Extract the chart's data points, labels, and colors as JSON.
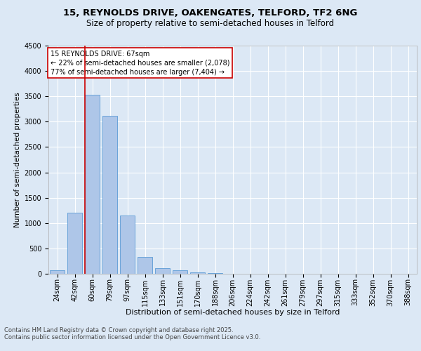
{
  "title1": "15, REYNOLDS DRIVE, OAKENGATES, TELFORD, TF2 6NG",
  "title2": "Size of property relative to semi-detached houses in Telford",
  "xlabel": "Distribution of semi-detached houses by size in Telford",
  "ylabel": "Number of semi-detached properties",
  "categories": [
    "24sqm",
    "42sqm",
    "60sqm",
    "79sqm",
    "97sqm",
    "115sqm",
    "133sqm",
    "151sqm",
    "170sqm",
    "188sqm",
    "206sqm",
    "224sqm",
    "242sqm",
    "261sqm",
    "279sqm",
    "297sqm",
    "315sqm",
    "333sqm",
    "352sqm",
    "370sqm",
    "388sqm"
  ],
  "values": [
    75,
    1210,
    3530,
    3110,
    1150,
    330,
    105,
    65,
    30,
    15,
    5,
    3,
    2,
    1,
    1,
    0,
    0,
    0,
    0,
    0,
    0
  ],
  "bar_color": "#aec6e8",
  "bar_edge_color": "#5b9bd5",
  "background_color": "#dce8f5",
  "plot_bg_color": "#dce8f5",
  "grid_color": "#ffffff",
  "annotation_text": "15 REYNOLDS DRIVE: 67sqm\n← 22% of semi-detached houses are smaller (2,078)\n77% of semi-detached houses are larger (7,404) →",
  "vline_x": 1.57,
  "vline_color": "#cc0000",
  "annotation_box_edge": "#cc0000",
  "ylim": [
    0,
    4500
  ],
  "yticks": [
    0,
    500,
    1000,
    1500,
    2000,
    2500,
    3000,
    3500,
    4000,
    4500
  ],
  "footer": "Contains HM Land Registry data © Crown copyright and database right 2025.\nContains public sector information licensed under the Open Government Licence v3.0.",
  "title1_fontsize": 9.5,
  "title2_fontsize": 8.5,
  "xlabel_fontsize": 8,
  "ylabel_fontsize": 7.5,
  "tick_fontsize": 7,
  "footer_fontsize": 6,
  "annot_fontsize": 7
}
